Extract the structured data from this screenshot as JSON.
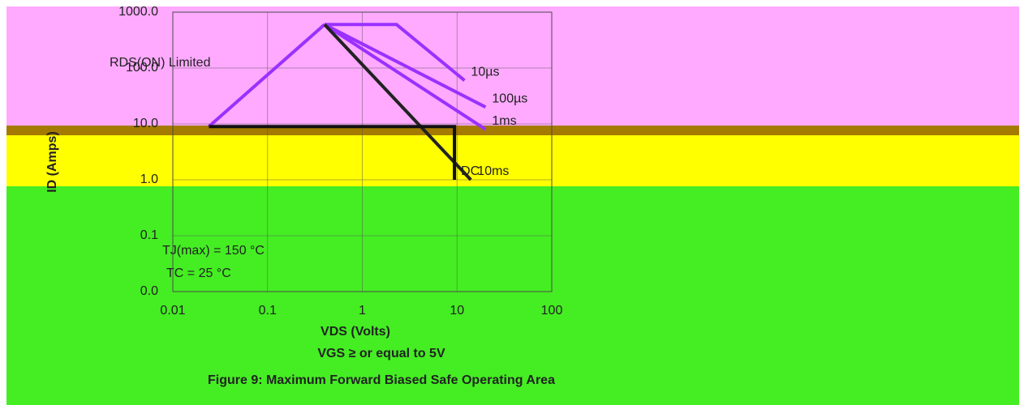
{
  "chart_data": {
    "type": "line",
    "title": "Figure 9: Maximum Forward Biased Safe Operating Area",
    "x_label": "VDS (Volts)",
    "y_label": "ID (Amps)",
    "note": "VGS ≥ or equal to 5V",
    "annotations": [
      "RDS(ON) Limited",
      "TJ(max) = 150 °C",
      "TC = 25 °C"
    ],
    "log_x": true,
    "log_y": true,
    "grid": true,
    "xlim": [
      0.01,
      100
    ],
    "xticks": [
      {
        "value": 0.01,
        "label": "0.01"
      },
      {
        "value": 0.1,
        "label": "0.1"
      },
      1,
      10,
      100
    ],
    "ylim": [
      0.01,
      1000
    ],
    "yticks": [
      {
        "value": 0.01,
        "label": "0.0"
      },
      {
        "value": 0.1,
        "label": "0.1"
      },
      {
        "value": 1,
        "label": "1.0"
      },
      {
        "value": 10,
        "label": "10.0"
      },
      {
        "value": 100,
        "label": "100.0"
      },
      {
        "value": 1000,
        "label": "1000.0"
      }
    ],
    "limit_line": {
      "color": "#9b30ff",
      "x": [
        0.024,
        0.4
      ],
      "values": [
        9,
        600
      ]
    },
    "series": [
      {
        "name": "10µs",
        "color": "#9b30ff",
        "x": [
          0.4,
          2.3,
          12
        ],
        "values": [
          600,
          600,
          60
        ]
      },
      {
        "name": "100µs",
        "color": "#9b30ff",
        "x": [
          0.4,
          20
        ],
        "values": [
          600,
          20
        ]
      },
      {
        "name": "1ms",
        "color": "#9b30ff",
        "x": [
          0.4,
          20
        ],
        "values": [
          600,
          8
        ]
      },
      {
        "name": "10ms",
        "color": "#222222",
        "x": [
          0.4,
          14
        ],
        "values": [
          600,
          1
        ]
      },
      {
        "name": "DC",
        "color": "#111111",
        "x": [
          0.024,
          9.4,
          9.4
        ],
        "values": [
          9,
          9,
          1
        ]
      }
    ]
  }
}
